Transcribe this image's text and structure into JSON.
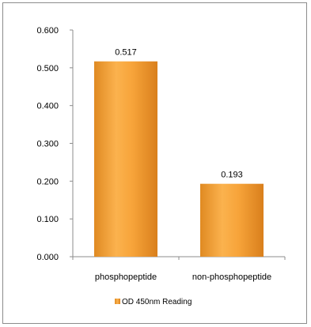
{
  "chart_data": {
    "type": "bar",
    "categories": [
      "phosphopeptide",
      "non-phosphopeptide"
    ],
    "series": [
      {
        "name": "OD 450nm Reading",
        "values": [
          0.517,
          0.193
        ]
      }
    ],
    "data_labels": [
      "0.517",
      "0.193"
    ],
    "ylim": [
      0,
      0.6
    ],
    "yticks": [
      0.0,
      0.1,
      0.2,
      0.3,
      0.4,
      0.5,
      0.6
    ],
    "ytick_labels": [
      "0.000",
      "0.100",
      "0.200",
      "0.300",
      "0.400",
      "0.500",
      "0.600"
    ],
    "grid": false,
    "legend_position": "bottom",
    "colors": {
      "bar": "#f5a033",
      "bar_light": "#fbc06a",
      "bar_dark": "#d9821a"
    }
  }
}
